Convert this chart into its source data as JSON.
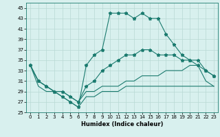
{
  "title": "",
  "xlabel": "Humidex (Indice chaleur)",
  "ylabel": "",
  "x": [
    0,
    1,
    2,
    3,
    4,
    5,
    6,
    7,
    8,
    9,
    10,
    11,
    12,
    13,
    14,
    15,
    16,
    17,
    18,
    19,
    20,
    21,
    22,
    23
  ],
  "line_top": [
    34,
    31,
    30,
    29,
    28,
    27,
    26,
    34,
    36,
    37,
    44,
    44,
    44,
    43,
    44,
    43,
    43,
    40,
    38,
    36,
    35,
    34,
    33,
    32
  ],
  "line_mid_up": [
    34,
    31,
    30,
    29,
    29,
    28,
    27,
    30,
    31,
    33,
    34,
    35,
    36,
    36,
    37,
    37,
    36,
    36,
    36,
    35,
    35,
    35,
    33,
    32
  ],
  "line_mid_lo": [
    34,
    31,
    30,
    29,
    29,
    28,
    27,
    29,
    29,
    30,
    30,
    30,
    31,
    31,
    32,
    32,
    32,
    33,
    33,
    33,
    34,
    34,
    31,
    30
  ],
  "line_bot": [
    34,
    30,
    29,
    29,
    28,
    27,
    26,
    28,
    28,
    29,
    29,
    29,
    30,
    30,
    30,
    30,
    30,
    30,
    30,
    30,
    30,
    30,
    30,
    30
  ],
  "ylim_min": 25,
  "ylim_max": 46,
  "yticks": [
    25,
    27,
    29,
    31,
    33,
    35,
    37,
    39,
    41,
    43,
    45
  ],
  "xticks": [
    0,
    1,
    2,
    3,
    4,
    5,
    6,
    7,
    8,
    9,
    10,
    11,
    12,
    13,
    14,
    15,
    16,
    17,
    18,
    19,
    20,
    21,
    22,
    23
  ],
  "line_color": "#1a7a6e",
  "bg_color": "#d8f0ee",
  "grid_color": "#b8d8d4",
  "marker": "*",
  "marker_size": 3.5,
  "linewidth": 0.8
}
